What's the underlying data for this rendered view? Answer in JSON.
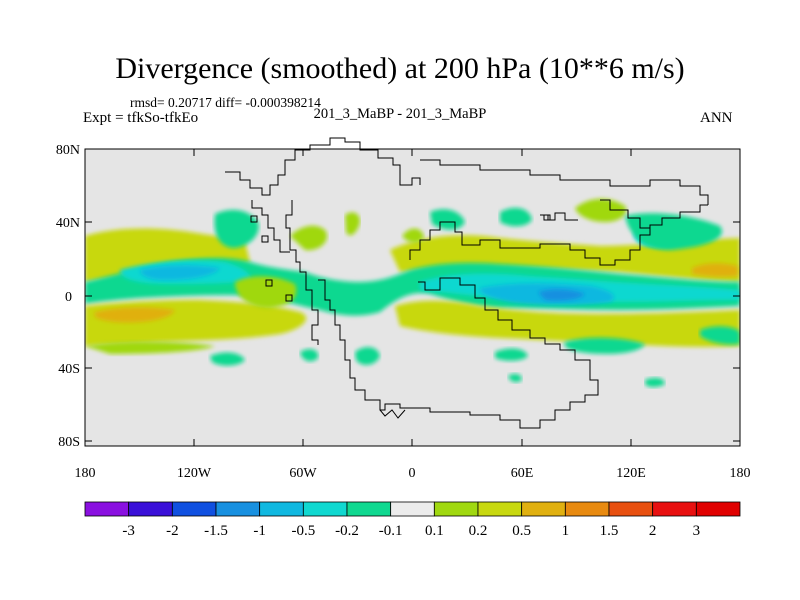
{
  "title": "Divergence (smoothed) at 200 hPa (10**6 m/s)",
  "stats": "rmsd= 0.20717 diff= -0.000398214",
  "experiment": "Expt = tfkSo-tfkEo",
  "case": "201_3_MaBP - 201_3_MaBP",
  "season": "ANN",
  "axes": {
    "lat_ticks": [
      "80N",
      "40N",
      "0",
      "40S",
      "80S"
    ],
    "lon_ticks": [
      "180",
      "120W",
      "60W",
      "0",
      "60E",
      "120E",
      "180"
    ]
  },
  "colorbar": {
    "labels": [
      "-3",
      "-2",
      "-1.5",
      "-1",
      "-0.5",
      "-0.2",
      "-0.1",
      "0.1",
      "0.2",
      "0.5",
      "1",
      "1.5",
      "2",
      "3"
    ],
    "colors": [
      "#8a10e0",
      "#3a10d8",
      "#1050e0",
      "#1890e0",
      "#10b8e0",
      "#10d8d0",
      "#10d890",
      "#ececec",
      "#a0d810",
      "#c8d810",
      "#e0b010",
      "#e88a10",
      "#e85010",
      "#e81010",
      "#e00000"
    ]
  },
  "colors": {
    "background": "#e5e5e5",
    "coastline": "#000000"
  }
}
